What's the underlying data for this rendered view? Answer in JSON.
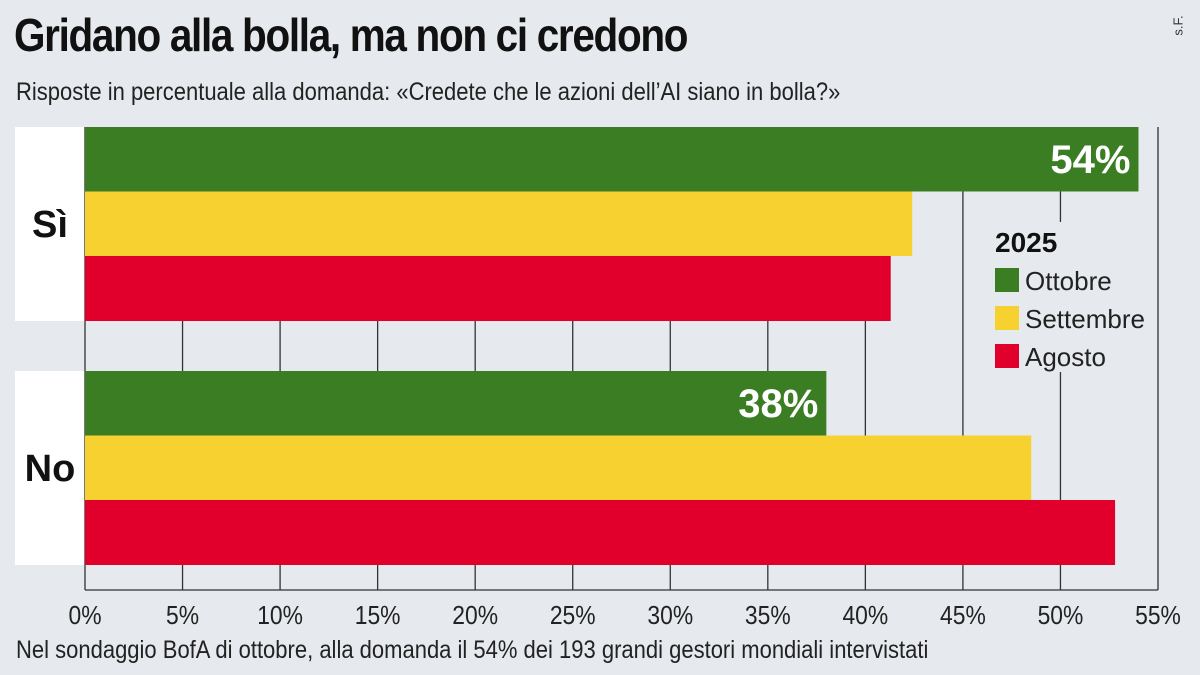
{
  "title": "Gridano alla bolla, ma non ci credono",
  "subtitle": "Risposte in percentuale alla domanda: «Credete che le azioni dell’AI siano in bolla?»",
  "credit": "s.F.",
  "note": "Nel sondaggio BofA di ottobre, alla domanda il 54% dei 193 grandi gestori mondiali intervistati",
  "chart_data": {
    "type": "bar",
    "orientation": "horizontal",
    "categories": [
      "Sì",
      "No"
    ],
    "legend_title": "2025",
    "legend_placement": "right",
    "series": [
      {
        "name": "Ottobre",
        "color": "#3a7d22",
        "values": [
          54,
          38
        ],
        "labels": [
          "54%",
          "38%"
        ]
      },
      {
        "name": "Settembre",
        "color": "#f6d130",
        "values": [
          42.4,
          48.5
        ],
        "labels": [
          "",
          ""
        ]
      },
      {
        "name": "Agosto",
        "color": "#e0002b",
        "values": [
          41.3,
          52.8
        ],
        "labels": [
          "",
          ""
        ]
      }
    ],
    "xlim": [
      0,
      55
    ],
    "xticks": [
      "0%",
      "5%",
      "10%",
      "15%",
      "20%",
      "25%",
      "30%",
      "35%",
      "40%",
      "45%",
      "50%",
      "55%"
    ],
    "grid": true
  }
}
